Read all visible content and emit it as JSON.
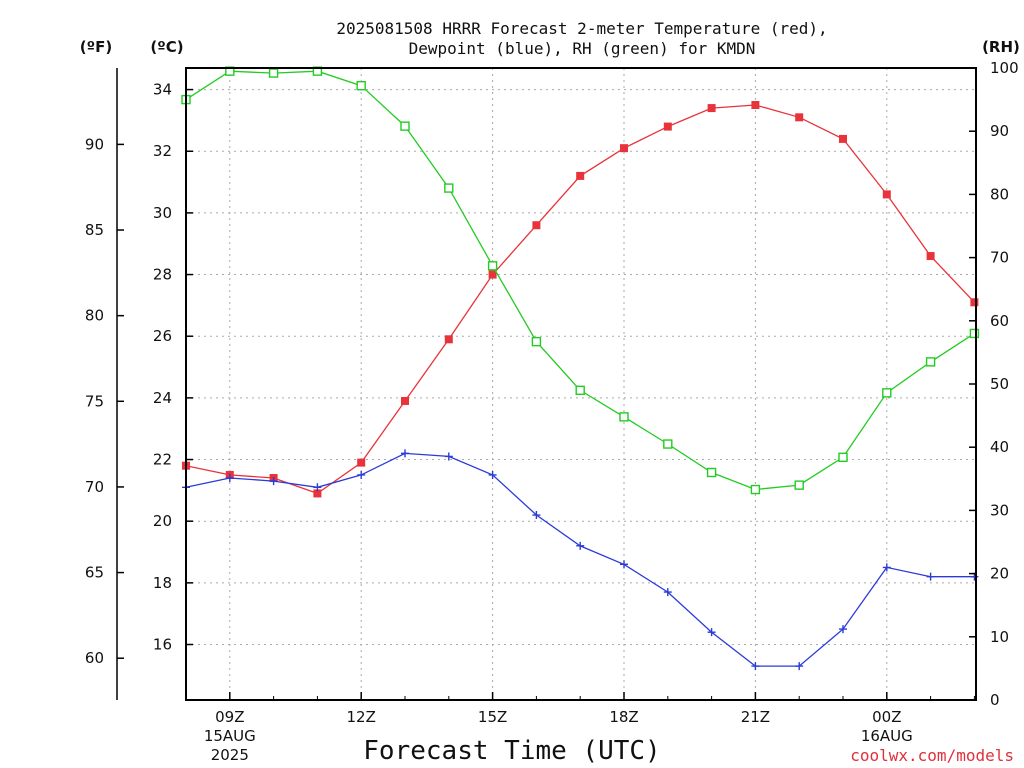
{
  "chart_data": {
    "type": "line",
    "title_line1": "2025081508 HRRR Forecast 2-meter Temperature (red),",
    "title_line2": "Dewpoint (blue), RH (green) for KMDN",
    "xlabel": "Forecast Time (UTC)",
    "credit": "coolwx.com/models",
    "units": {
      "fahrenheit": "(ºF)",
      "celsius": "(ºC)",
      "rh": "(RH)"
    },
    "grid": true,
    "x_ticks": [
      {
        "label": "09Z",
        "sub": [
          "15AUG",
          "2025"
        ]
      },
      {
        "label": "12Z",
        "sub": []
      },
      {
        "label": "15Z",
        "sub": []
      },
      {
        "label": "18Z",
        "sub": []
      },
      {
        "label": "21Z",
        "sub": []
      },
      {
        "label": "00Z",
        "sub": [
          "16AUG"
        ]
      }
    ],
    "x_hours": [
      "08Z",
      "09Z",
      "10Z",
      "11Z",
      "12Z",
      "13Z",
      "14Z",
      "15Z",
      "16Z",
      "17Z",
      "18Z",
      "19Z",
      "20Z",
      "21Z",
      "22Z",
      "23Z",
      "00Z",
      "01Z",
      "02Z"
    ],
    "celsius_axis": {
      "ylim": [
        14.2,
        34.7
      ],
      "ticks": [
        16,
        18,
        20,
        22,
        24,
        26,
        28,
        30,
        32,
        34
      ]
    },
    "fahrenheit_axis": {
      "ticks": [
        60,
        65,
        70,
        75,
        80,
        85,
        90
      ]
    },
    "rh_axis": {
      "ylim": [
        0,
        100
      ],
      "ticks": [
        0,
        10,
        20,
        30,
        40,
        50,
        60,
        70,
        80,
        90,
        100
      ]
    },
    "series": [
      {
        "name": "Temperature",
        "color": "#e8333a",
        "marker": "filled-square",
        "axis": "celsius",
        "values": [
          21.8,
          21.5,
          21.4,
          20.9,
          21.9,
          23.9,
          25.9,
          28.0,
          29.6,
          31.2,
          32.1,
          32.8,
          33.4,
          33.5,
          33.1,
          32.4,
          30.6,
          28.6,
          27.1
        ]
      },
      {
        "name": "Dewpoint",
        "color": "#2b3bd8",
        "marker": "plus",
        "axis": "celsius",
        "values": [
          21.1,
          21.4,
          21.3,
          21.1,
          21.5,
          22.2,
          22.1,
          21.5,
          20.2,
          19.2,
          18.6,
          17.7,
          16.4,
          15.3,
          15.3,
          16.5,
          18.5,
          18.2,
          18.2
        ]
      },
      {
        "name": "RH",
        "color": "#22cc22",
        "marker": "open-square",
        "axis": "rh",
        "values": [
          95.0,
          99.5,
          99.2,
          99.5,
          97.2,
          90.8,
          81.0,
          68.7,
          56.7,
          49.0,
          44.8,
          40.5,
          36.0,
          33.3,
          34.0,
          38.4,
          48.6,
          53.5,
          58.0
        ]
      }
    ]
  }
}
